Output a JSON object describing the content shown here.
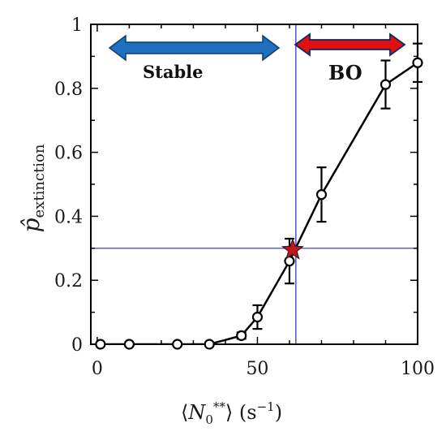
{
  "chart_data": {
    "type": "line",
    "title": "",
    "xlabel": "⟨N₀**⟩  (s⁻¹)",
    "ylabel": "p̂extinction",
    "xlim": [
      -2,
      100
    ],
    "ylim": [
      0,
      1
    ],
    "x_ticks": [
      "0",
      "50",
      "100"
    ],
    "y_ticks": [
      "0",
      "0.2",
      "0.4",
      "0.6",
      "0.8",
      "1"
    ],
    "grid": false,
    "series": [
      {
        "x": [
          1,
          10,
          25,
          35,
          45,
          50,
          60,
          70,
          90,
          100
        ],
        "y": [
          0,
          0,
          0,
          0,
          0.027,
          0.085,
          0.26,
          0.468,
          0.812,
          0.88
        ],
        "err": [
          0,
          0,
          0,
          0,
          0.01,
          0.037,
          0.07,
          0.085,
          0.075,
          0.06
        ]
      }
    ],
    "reference_lines": {
      "vertical_x": 62,
      "horizontal_y": 0.3
    },
    "star_marker": {
      "x": 61,
      "y": 0.295
    },
    "regions": {
      "left_label": "Stable",
      "right_label": "BO"
    },
    "colors": {
      "series": "#000000",
      "reference": "#2a2ab4",
      "stable_arrow": "#1e6fbf",
      "bo_arrow": "#e01010",
      "star": "#c0161c"
    }
  }
}
